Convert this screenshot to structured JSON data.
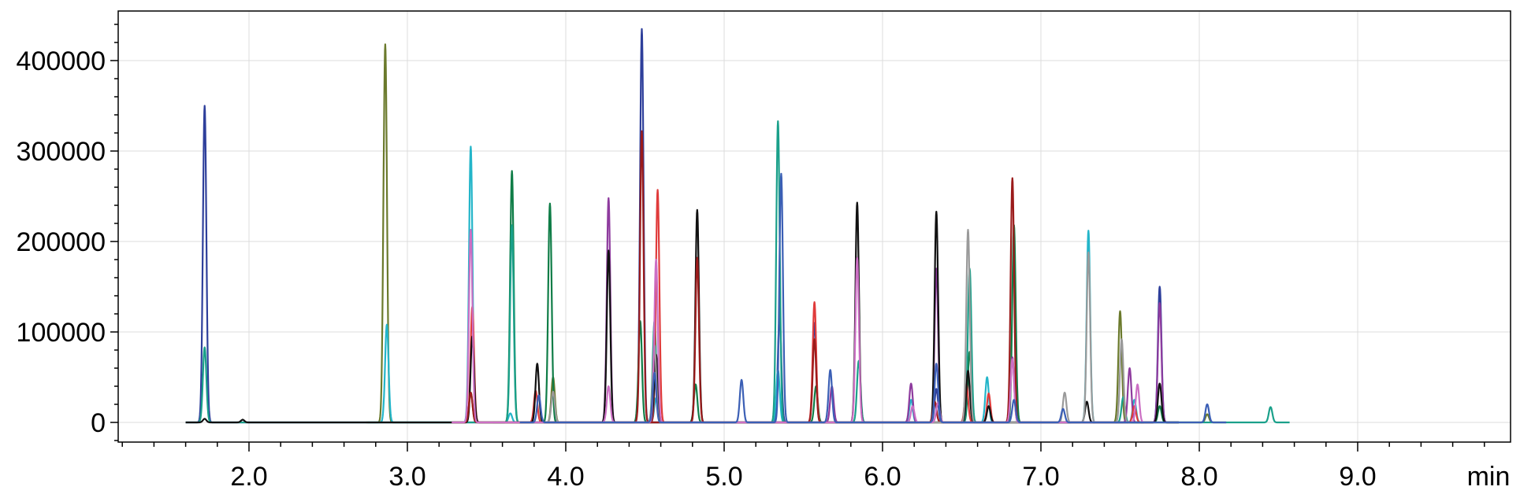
{
  "chart_data": {
    "type": "line",
    "title": "",
    "xlabel": "",
    "ylabel": "",
    "x_unit_label": "min",
    "xlim": [
      1.2,
      10.0
    ],
    "ylim": [
      -20000,
      460000
    ],
    "x_ticks": [
      {
        "value": 2.0,
        "label": "2.0"
      },
      {
        "value": 3.0,
        "label": "3.0"
      },
      {
        "value": 4.0,
        "label": "4.0"
      },
      {
        "value": 5.0,
        "label": "5.0"
      },
      {
        "value": 6.0,
        "label": "6.0"
      },
      {
        "value": 7.0,
        "label": "7.0"
      },
      {
        "value": 8.0,
        "label": "8.0"
      },
      {
        "value": 9.0,
        "label": "9.0"
      }
    ],
    "y_ticks": [
      {
        "value": 0,
        "label": "0"
      },
      {
        "value": 100000,
        "label": "100000"
      },
      {
        "value": 200000,
        "label": "200000"
      },
      {
        "value": 300000,
        "label": "300000"
      },
      {
        "value": 400000,
        "label": "400000"
      }
    ],
    "grid": true,
    "legend": "none",
    "series": [
      {
        "color": "#2e3f9b",
        "peaks": [
          [
            1.72,
            350000
          ],
          [
            4.48,
            435000
          ],
          [
            5.35,
            115000
          ],
          [
            5.57,
            110000
          ],
          [
            6.34,
            37000
          ],
          [
            7.75,
            150000
          ]
        ]
      },
      {
        "color": "#6b7a2c",
        "peaks": [
          [
            2.86,
            418000
          ],
          [
            3.4,
            33000
          ],
          [
            3.92,
            50000
          ],
          [
            7.5,
            123000
          ],
          [
            8.05,
            9000
          ]
        ]
      },
      {
        "color": "#23b5c9",
        "peaks": [
          [
            2.87,
            108000
          ],
          [
            3.4,
            305000
          ],
          [
            3.65,
            10000
          ],
          [
            4.57,
            27000
          ],
          [
            5.34,
            58000
          ],
          [
            6.18,
            25000
          ],
          [
            6.66,
            50000
          ],
          [
            7.3,
            212000
          ],
          [
            7.59,
            25000
          ]
        ]
      },
      {
        "color": "#0f7d47",
        "peaks": [
          [
            3.66,
            278000
          ],
          [
            3.9,
            242000
          ],
          [
            4.47,
            112000
          ],
          [
            4.82,
            42000
          ],
          [
            5.58,
            40000
          ],
          [
            6.55,
            78000
          ],
          [
            6.83,
            218000
          ],
          [
            7.75,
            18000
          ]
        ]
      },
      {
        "color": "#1aa08a",
        "peaks": [
          [
            1.72,
            83000
          ],
          [
            3.66,
            218000
          ],
          [
            4.56,
            112000
          ],
          [
            5.34,
            333000
          ],
          [
            5.85,
            68000
          ],
          [
            6.55,
            170000
          ],
          [
            7.52,
            28000
          ],
          [
            8.45,
            17000
          ]
        ]
      },
      {
        "color": "#8e3b9e",
        "peaks": [
          [
            4.27,
            248000
          ],
          [
            5.68,
            40000
          ],
          [
            6.18,
            43000
          ],
          [
            6.34,
            170000
          ],
          [
            6.82,
            72000
          ],
          [
            7.56,
            60000
          ],
          [
            7.75,
            132000
          ]
        ]
      },
      {
        "color": "#e03b3b",
        "peaks": [
          [
            3.41,
            128000
          ],
          [
            3.81,
            35000
          ],
          [
            4.58,
            257000
          ],
          [
            5.57,
            133000
          ],
          [
            6.53,
            42000
          ],
          [
            6.67,
            32000
          ],
          [
            7.59,
            18000
          ]
        ]
      },
      {
        "color": "#111111",
        "peaks": [
          [
            1.72,
            4000
          ],
          [
            1.96,
            3000
          ],
          [
            3.41,
            95000
          ],
          [
            3.82,
            65000
          ],
          [
            4.27,
            190000
          ],
          [
            4.57,
            75000
          ],
          [
            4.83,
            235000
          ],
          [
            5.84,
            243000
          ],
          [
            6.34,
            233000
          ],
          [
            6.54,
            57000
          ],
          [
            6.67,
            18000
          ],
          [
            7.29,
            23000
          ],
          [
            7.75,
            43000
          ]
        ]
      },
      {
        "color": "#9b1b1b",
        "peaks": [
          [
            3.4,
            33000
          ],
          [
            4.48,
            322000
          ],
          [
            4.83,
            182000
          ],
          [
            5.57,
            92000
          ],
          [
            6.33,
            23000
          ],
          [
            6.82,
            270000
          ]
        ]
      },
      {
        "color": "#9a9a9a",
        "peaks": [
          [
            3.92,
            34000
          ],
          [
            4.56,
            85000
          ],
          [
            6.54,
            213000
          ],
          [
            7.15,
            33000
          ],
          [
            7.3,
            188000
          ],
          [
            7.51,
            92000
          ]
        ]
      },
      {
        "color": "#cc6fc4",
        "peaks": [
          [
            3.4,
            213000
          ],
          [
            4.27,
            40000
          ],
          [
            4.57,
            180000
          ],
          [
            5.84,
            182000
          ],
          [
            6.19,
            18000
          ],
          [
            6.35,
            22000
          ],
          [
            6.82,
            70000
          ],
          [
            7.61,
            42000
          ]
        ]
      },
      {
        "color": "#3b5fb5",
        "peaks": [
          [
            3.83,
            30000
          ],
          [
            4.56,
            55000
          ],
          [
            5.11,
            47000
          ],
          [
            5.36,
            275000
          ],
          [
            5.67,
            58000
          ],
          [
            6.34,
            65000
          ],
          [
            6.83,
            25000
          ],
          [
            7.14,
            15000
          ],
          [
            8.05,
            20000
          ]
        ]
      }
    ]
  }
}
